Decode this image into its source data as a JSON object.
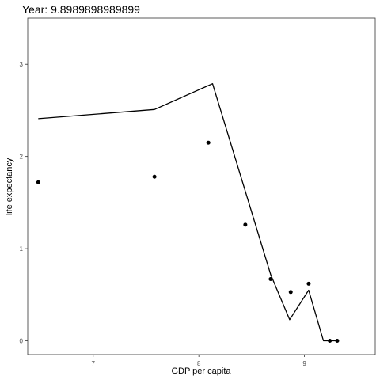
{
  "chart_data": {
    "type": "scatter",
    "title": "Year: 9.8989898989899",
    "xlabel": "GDP per capita",
    "ylabel": "life expectancy",
    "xlim": [
      6.38,
      9.67
    ],
    "ylim": [
      -0.15,
      3.5
    ],
    "x_ticks": [
      7,
      8,
      9
    ],
    "y_ticks": [
      0,
      1,
      2,
      3
    ],
    "x_tick_labels": [
      "7",
      "8",
      "9"
    ],
    "y_tick_labels": [
      "0",
      "1",
      "2",
      "3"
    ],
    "grid": false,
    "legend": "none",
    "series": [
      {
        "kind": "points",
        "x": [
          6.48,
          7.58,
          8.09,
          8.44,
          8.68,
          8.87,
          9.04,
          9.24,
          9.31
        ],
        "y": [
          1.72,
          1.78,
          2.15,
          1.26,
          0.67,
          0.53,
          0.62,
          0.0,
          0.0
        ]
      },
      {
        "kind": "line",
        "x": [
          6.48,
          7.58,
          8.13,
          8.68,
          8.86,
          9.04,
          9.18,
          9.31
        ],
        "y": [
          2.41,
          2.51,
          2.79,
          0.72,
          0.23,
          0.55,
          0.0,
          0.0
        ]
      }
    ],
    "colors": {
      "points": "#000000",
      "line": "#000000",
      "panel_border": "#333333",
      "tick_label": "#4d4d4d"
    }
  }
}
